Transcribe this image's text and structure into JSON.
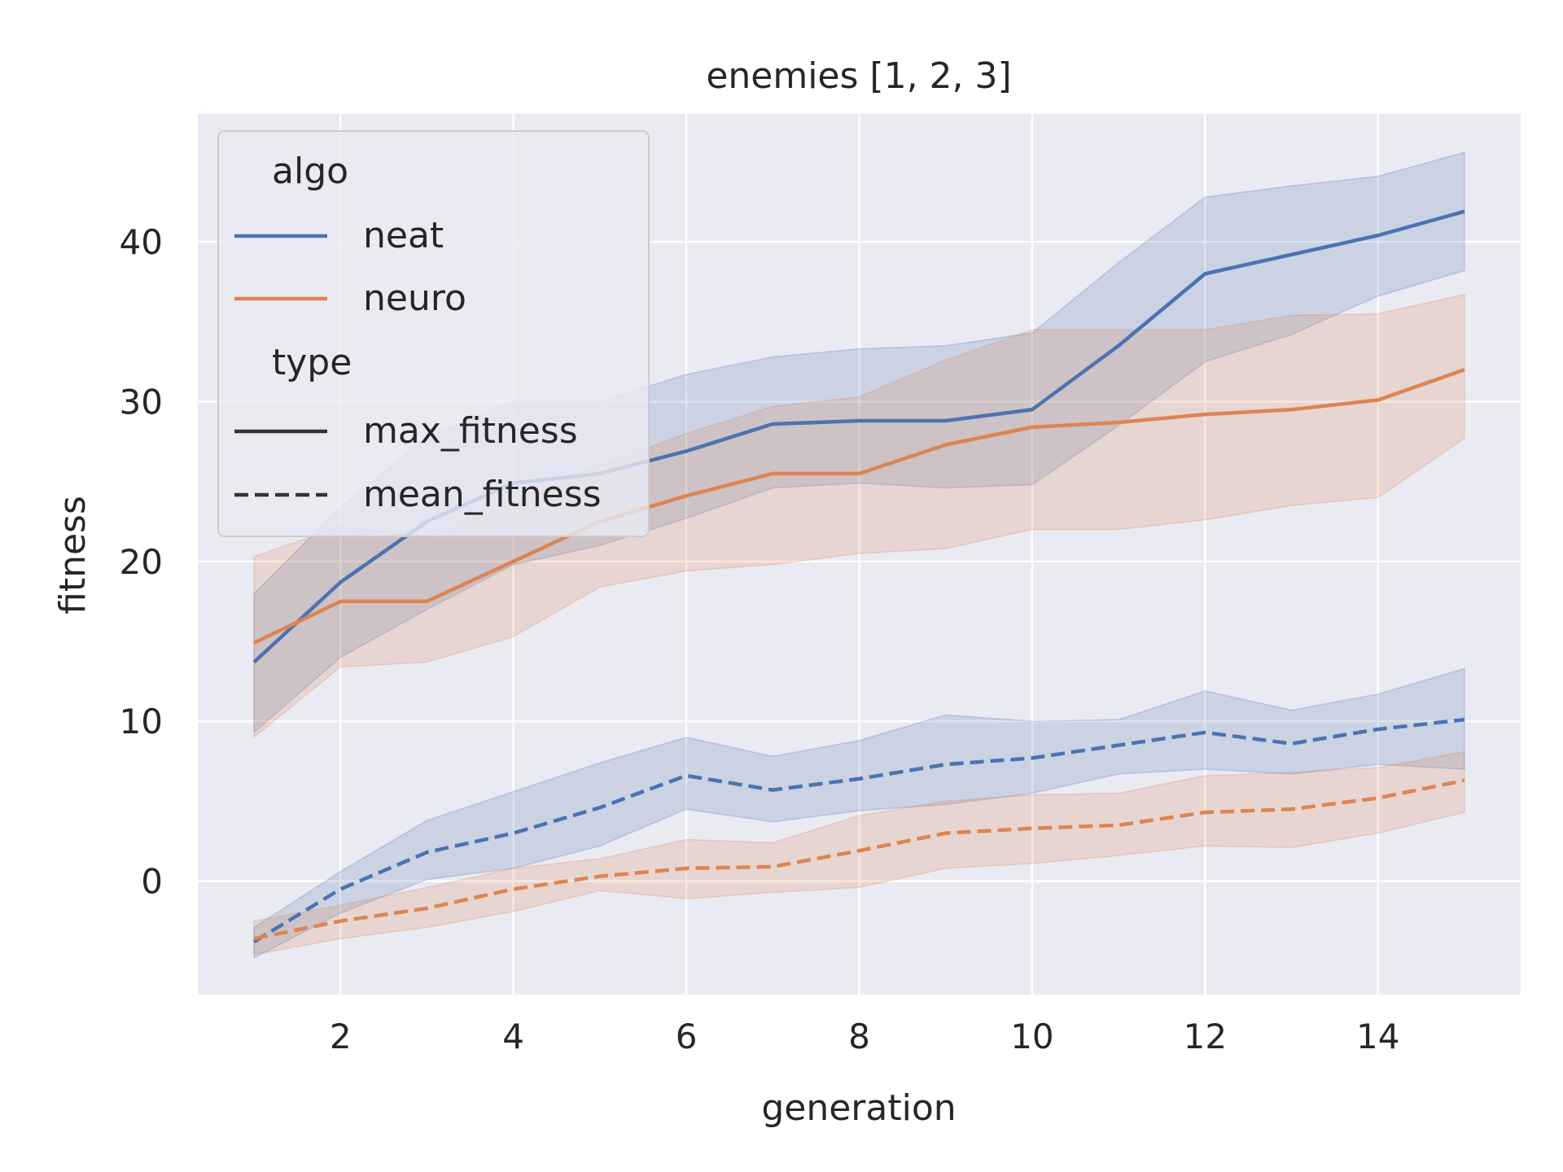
{
  "chart_data": {
    "type": "line",
    "title": "enemies [1, 2, 3]",
    "xlabel": "generation",
    "ylabel": "fitness",
    "xlim": [
      0.35,
      15.65
    ],
    "ylim": [
      -7.1,
      48.0
    ],
    "x_ticks": [
      2,
      4,
      6,
      8,
      10,
      12,
      14
    ],
    "y_ticks": [
      0,
      10,
      20,
      30,
      40
    ],
    "grid": true,
    "legend_placement": "top-left",
    "legend": {
      "hue_title": "algo",
      "style_title": "type",
      "hue_entries": [
        {
          "label": "neat",
          "color": "#4c72b0"
        },
        {
          "label": "neuro",
          "color": "#dd8452"
        }
      ],
      "style_entries": [
        {
          "label": "max_fitness",
          "dash": "solid"
        },
        {
          "label": "mean_fitness",
          "dash": "dashed"
        }
      ]
    },
    "x": [
      1,
      2,
      3,
      4,
      5,
      6,
      7,
      8,
      9,
      10,
      11,
      12,
      13,
      14,
      15
    ],
    "series": [
      {
        "name": "neat",
        "type_name": "max_fitness",
        "color": "#4c72b0",
        "dash": "solid",
        "values": [
          13.7,
          18.7,
          22.5,
          24.9,
          25.5,
          26.9,
          28.6,
          28.8,
          28.8,
          29.5,
          33.5,
          38.0,
          39.2,
          40.4,
          41.9
        ],
        "ci_low": [
          9.3,
          14.0,
          17.0,
          19.8,
          21.0,
          22.7,
          24.6,
          24.9,
          24.6,
          24.8,
          28.5,
          32.5,
          34.2,
          36.6,
          38.2
        ],
        "ci_high": [
          18.0,
          23.4,
          27.8,
          30.0,
          30.0,
          31.7,
          32.8,
          33.3,
          33.5,
          34.3,
          38.7,
          42.8,
          43.5,
          44.1,
          45.6
        ]
      },
      {
        "name": "neuro",
        "type_name": "max_fitness",
        "color": "#dd8452",
        "dash": "solid",
        "values": [
          14.9,
          17.5,
          17.5,
          20.0,
          22.5,
          24.1,
          25.5,
          25.5,
          27.3,
          28.4,
          28.7,
          29.2,
          29.5,
          30.1,
          32.0
        ],
        "ci_low": [
          9.0,
          13.4,
          13.7,
          15.3,
          18.4,
          19.4,
          19.8,
          20.5,
          20.8,
          22.0,
          22.0,
          22.6,
          23.5,
          24.0,
          27.7
        ],
        "ci_high": [
          20.3,
          22.2,
          21.5,
          23.7,
          26.0,
          28.0,
          29.7,
          30.3,
          32.6,
          34.5,
          34.5,
          34.5,
          35.4,
          35.5,
          36.7
        ]
      },
      {
        "name": "neat",
        "type_name": "mean_fitness",
        "color": "#4c72b0",
        "dash": "dashed",
        "values": [
          -3.8,
          -0.5,
          1.8,
          3.0,
          4.6,
          6.6,
          5.7,
          6.4,
          7.3,
          7.7,
          8.5,
          9.3,
          8.6,
          9.5,
          10.1
        ],
        "ci_low": [
          -4.8,
          -2.0,
          0.1,
          0.8,
          2.2,
          4.5,
          3.7,
          4.4,
          4.8,
          5.5,
          6.7,
          7.0,
          6.7,
          7.3,
          7.0
        ],
        "ci_high": [
          -2.9,
          0.6,
          3.8,
          5.6,
          7.4,
          9.0,
          7.8,
          8.8,
          10.4,
          10.0,
          10.1,
          11.9,
          10.7,
          11.7,
          13.3
        ]
      },
      {
        "name": "neuro",
        "type_name": "mean_fitness",
        "color": "#dd8452",
        "dash": "dashed",
        "values": [
          -3.6,
          -2.5,
          -1.7,
          -0.5,
          0.3,
          0.8,
          0.9,
          1.9,
          3.0,
          3.3,
          3.5,
          4.3,
          4.5,
          5.2,
          6.3
        ],
        "ci_low": [
          -4.6,
          -3.6,
          -2.9,
          -1.9,
          -0.6,
          -1.1,
          -0.7,
          -0.4,
          0.8,
          1.1,
          1.6,
          2.2,
          2.1,
          3.0,
          4.3
        ],
        "ci_high": [
          -2.5,
          -1.5,
          -0.4,
          0.8,
          1.4,
          2.6,
          2.4,
          4.1,
          5.0,
          5.4,
          5.5,
          6.6,
          6.8,
          7.1,
          8.1
        ]
      }
    ]
  }
}
